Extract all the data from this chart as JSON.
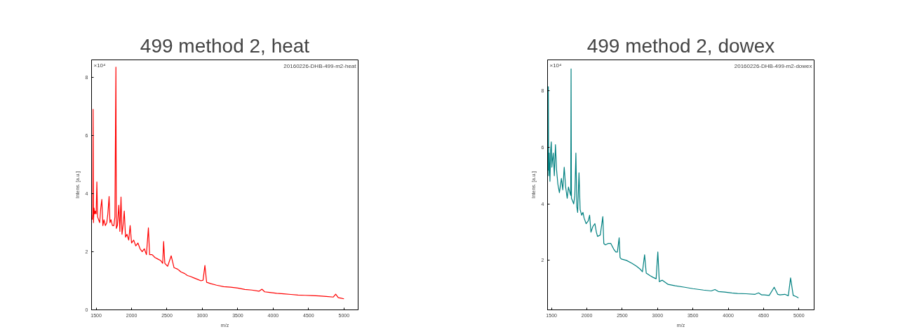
{
  "chart_data": [
    {
      "type": "line",
      "title": "499 method 2, heat",
      "xlabel": "m/z",
      "ylabel": "Intens. [a.u.]",
      "annotations": [
        "×10⁴",
        "20160226-DHB-499-m2-heat"
      ],
      "xlim": [
        1435,
        5200
      ],
      "ylim": [
        0,
        8.6
      ],
      "xticks": [
        1500,
        2000,
        2500,
        3000,
        3500,
        4000,
        4500,
        5000
      ],
      "yticks": [
        0,
        2,
        4,
        6,
        8
      ],
      "grid": false,
      "line_style": "solid",
      "series": [
        {
          "color": "#ff0000",
          "x": [
            1445,
            1452,
            1457,
            1462,
            1470,
            1480,
            1490,
            1500,
            1510,
            1520,
            1535,
            1550,
            1565,
            1580,
            1595,
            1610,
            1630,
            1650,
            1665,
            1683,
            1695,
            1710,
            1730,
            1750,
            1765,
            1779,
            1785,
            1800,
            1820,
            1835,
            1851,
            1865,
            1880,
            1897,
            1915,
            1935,
            1960,
            1980,
            2000,
            2030,
            2060,
            2090,
            2120,
            2150,
            2180,
            2210,
            2238,
            2255,
            2290,
            2330,
            2370,
            2410,
            2440,
            2453,
            2470,
            2510,
            2560,
            2600,
            2650,
            2700,
            2750,
            2789,
            2830,
            2880,
            2930,
            2980,
            3010,
            3036,
            3060,
            3120,
            3200,
            3300,
            3400,
            3500,
            3600,
            3700,
            3800,
            3841,
            3880,
            3950,
            4050,
            4150,
            4250,
            4350,
            4450,
            4550,
            4650,
            4750,
            4850,
            4883,
            4920,
            4960,
            5000
          ],
          "values": [
            3.1,
            3.3,
            6.9,
            3.0,
            3.5,
            3.3,
            3.4,
            3.3,
            4.4,
            3.2,
            3.1,
            3.0,
            3.5,
            3.8,
            2.9,
            3.1,
            2.9,
            3.0,
            3.3,
            3.9,
            3.0,
            3.1,
            2.9,
            2.9,
            3.2,
            8.35,
            2.8,
            2.9,
            3.6,
            2.7,
            3.88,
            2.6,
            2.9,
            3.4,
            2.5,
            2.6,
            2.4,
            2.9,
            2.3,
            2.4,
            2.2,
            2.3,
            2.1,
            2.0,
            2.1,
            1.9,
            2.82,
            1.9,
            1.9,
            1.8,
            1.75,
            1.7,
            1.6,
            2.35,
            1.6,
            1.5,
            1.86,
            1.45,
            1.4,
            1.3,
            1.25,
            1.18,
            1.15,
            1.1,
            1.05,
            1.0,
            1.02,
            1.53,
            0.95,
            0.9,
            0.85,
            0.8,
            0.78,
            0.75,
            0.7,
            0.68,
            0.64,
            0.71,
            0.62,
            0.6,
            0.57,
            0.55,
            0.53,
            0.51,
            0.5,
            0.49,
            0.48,
            0.46,
            0.44,
            0.54,
            0.42,
            0.4,
            0.38
          ]
        }
      ]
    },
    {
      "type": "line",
      "title": "499 method 2, dowex",
      "xlabel": "m/z",
      "ylabel": "Intens. [a.u.]",
      "annotations": [
        "×10⁴",
        "20160226-DHB-499-m2-dowex"
      ],
      "xlim": [
        1444,
        5215
      ],
      "ylim": [
        0.25,
        9.1
      ],
      "xticks": [
        1500,
        2000,
        2500,
        3000,
        3500,
        4000,
        4500,
        5000
      ],
      "yticks": [
        2,
        4,
        6,
        8
      ],
      "grid": false,
      "line_style": "solid",
      "series": [
        {
          "color": "#008080",
          "x": [
            1446,
            1450,
            1455,
            1460,
            1468,
            1478,
            1488,
            1497,
            1505,
            1511,
            1525,
            1540,
            1556,
            1572,
            1590,
            1612,
            1640,
            1660,
            1680,
            1700,
            1722,
            1740,
            1760,
            1772,
            1777,
            1782,
            1800,
            1814,
            1830,
            1845,
            1858,
            1870,
            1889,
            1905,
            1927,
            1945,
            1961,
            1990,
            2020,
            2039,
            2058,
            2085,
            2114,
            2135,
            2151,
            2190,
            2226,
            2240,
            2263,
            2300,
            2339,
            2380,
            2410,
            2432,
            2457,
            2470,
            2488,
            2560,
            2637,
            2700,
            2750,
            2787,
            2817,
            2840,
            2900,
            2937,
            2980,
            3004,
            3025,
            3068,
            3150,
            3250,
            3386,
            3500,
            3650,
            3760,
            3812,
            3860,
            3950,
            4050,
            4132,
            4250,
            4380,
            4429,
            4470,
            4508,
            4580,
            4650,
            4700,
            4732,
            4800,
            4850,
            4882,
            4919,
            4960,
            4994
          ],
          "values": [
            5.5,
            5.2,
            8.15,
            5.0,
            5.8,
            4.8,
            5.9,
            6.2,
            5.3,
            5.5,
            5.8,
            5.0,
            6.1,
            5.2,
            4.7,
            4.4,
            4.9,
            4.5,
            5.3,
            4.6,
            4.2,
            4.6,
            4.4,
            4.3,
            8.78,
            4.2,
            4.1,
            4.0,
            4.3,
            5.8,
            3.9,
            3.7,
            5.1,
            3.8,
            3.6,
            3.7,
            3.5,
            3.3,
            3.4,
            3.6,
            3.0,
            3.2,
            3.3,
            3.0,
            2.85,
            2.9,
            3.55,
            2.6,
            2.55,
            2.6,
            2.6,
            2.4,
            2.3,
            2.3,
            2.8,
            2.1,
            2.05,
            2.0,
            1.9,
            1.8,
            1.7,
            1.6,
            2.2,
            1.55,
            1.45,
            1.4,
            1.35,
            2.3,
            1.25,
            1.3,
            1.15,
            1.1,
            1.05,
            1.0,
            0.95,
            0.92,
            0.97,
            0.9,
            0.88,
            0.85,
            0.83,
            0.82,
            0.8,
            0.85,
            0.78,
            0.78,
            0.76,
            1.05,
            0.8,
            0.78,
            0.8,
            0.75,
            1.38,
            0.76,
            0.72,
            0.67
          ]
        }
      ]
    }
  ]
}
